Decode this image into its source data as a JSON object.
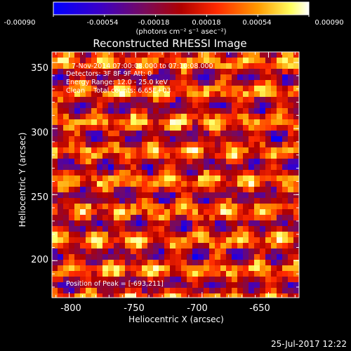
{
  "colorbar": {
    "tick_labels": [
      "-0.00090",
      "-0.00054",
      "-0.00018",
      "0.00018",
      "0.00054",
      "0.00090"
    ],
    "range": [
      -0.0009,
      0.0009
    ],
    "units_text": "(photons cm⁻² s⁻¹ asec⁻²)",
    "colors": [
      "#0000ff",
      "#3a00c8",
      "#7a0a5a",
      "#b00000",
      "#ff2a00",
      "#ff9a00",
      "#ffff60",
      "#ffffff"
    ]
  },
  "plot": {
    "title": "Reconstructed RHESSI Image",
    "info_lines": [
      "7-Nov-2014 07:00:08.000 to 07:10:08.000",
      "Detectors: 3F 8F 9F Att: 0",
      "Energy Range: 12.0 - 25.0 keV",
      "Clean    Total counts: 6.65E+03"
    ],
    "peak_text": "Position of Peak = [-693,211]",
    "timestamp": "25-Jul-2017 12:22"
  },
  "chart_data": {
    "type": "heatmap",
    "title": "Reconstructed RHESSI Image",
    "xlabel": "Heliocentric X (arcsec)",
    "ylabel": "Heliocentric Y (arcsec)",
    "xlim": [
      -813,
      -627
    ],
    "ylim": [
      172,
      358
    ],
    "xticks": [
      -800,
      -750,
      -700,
      -650
    ],
    "yticks": [
      200,
      250,
      300,
      350
    ],
    "xtick_labels": [
      "-800",
      "-750",
      "-700",
      "-650"
    ],
    "ytick_labels": [
      "200",
      "250",
      "300",
      "350"
    ],
    "peak": [
      -693,
      211
    ],
    "value_range": [
      -0.0009,
      0.0009
    ],
    "grid": "no"
  }
}
